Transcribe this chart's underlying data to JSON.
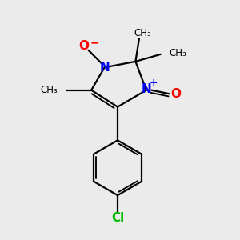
{
  "bg_color": "#ebebeb",
  "bond_color": "#000000",
  "N_color": "#0000ff",
  "O_color": "#ff0000",
  "Cl_color": "#00bb00",
  "line_width": 1.6,
  "figsize": [
    3.0,
    3.0
  ],
  "dpi": 100,
  "xlim": [
    0,
    10
  ],
  "ylim": [
    0,
    10
  ]
}
